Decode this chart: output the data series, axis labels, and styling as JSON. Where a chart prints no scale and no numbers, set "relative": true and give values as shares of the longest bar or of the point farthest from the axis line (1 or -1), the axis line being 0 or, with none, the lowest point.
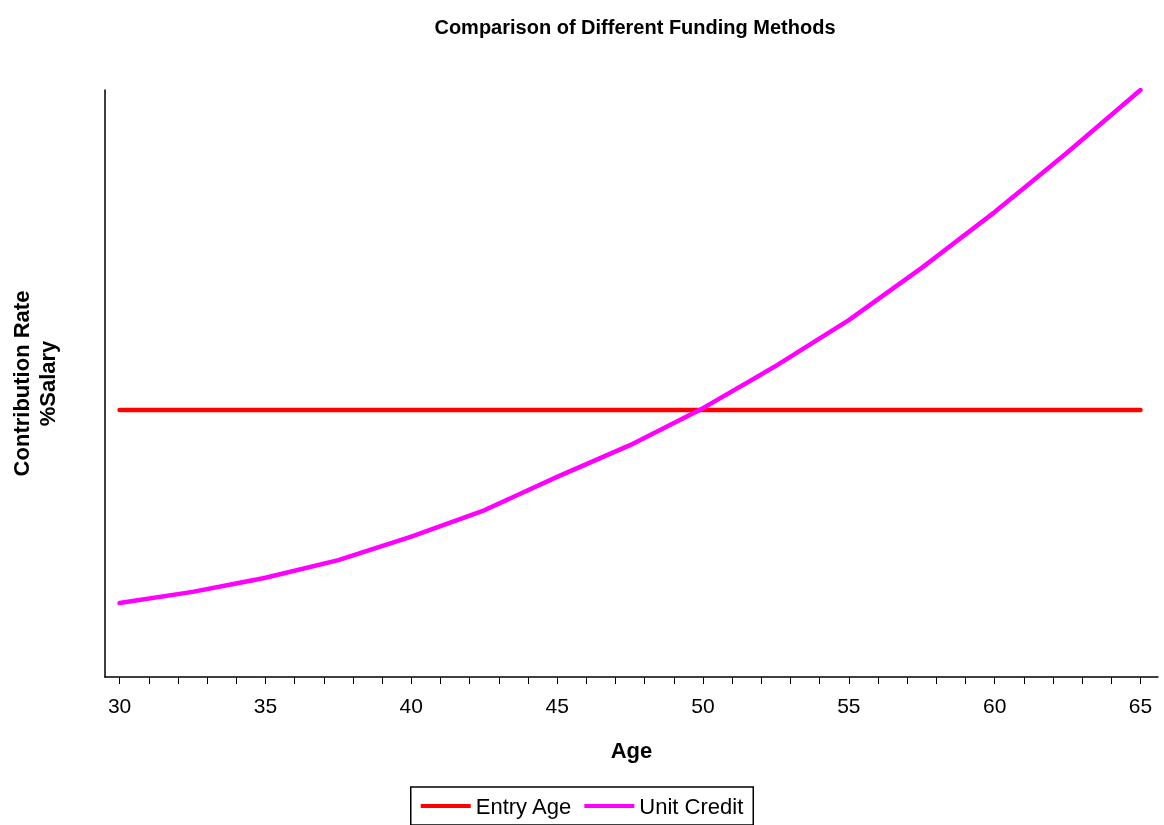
{
  "chart_data": {
    "type": "line",
    "title": "Comparison of Different Funding Methods",
    "xlabel": "Age",
    "ylabel": "Contribution Rate\n%Salary",
    "relative": true,
    "legend": "bottom",
    "grid": false,
    "marker": "none",
    "line_style": "solid",
    "xlim": [
      29.5,
      65.6
    ],
    "xticks": [
      30,
      {
        "value": 31,
        "label": null
      },
      {
        "value": 32,
        "label": null
      },
      {
        "value": 33,
        "label": null
      },
      {
        "value": 34,
        "label": null
      },
      35,
      {
        "value": 36,
        "label": null
      },
      {
        "value": 37,
        "label": null
      },
      {
        "value": 38,
        "label": null
      },
      {
        "value": 39,
        "label": null
      },
      40,
      {
        "value": 41,
        "label": null
      },
      {
        "value": 42,
        "label": null
      },
      {
        "value": 43,
        "label": null
      },
      {
        "value": 44,
        "label": null
      },
      45,
      {
        "value": 46,
        "label": null
      },
      {
        "value": 47,
        "label": null
      },
      {
        "value": 48,
        "label": null
      },
      {
        "value": 49,
        "label": null
      },
      50,
      {
        "value": 51,
        "label": null
      },
      {
        "value": 52,
        "label": null
      },
      {
        "value": 53,
        "label": null
      },
      {
        "value": 54,
        "label": null
      },
      55,
      {
        "value": 56,
        "label": null
      },
      {
        "value": 57,
        "label": null
      },
      {
        "value": 58,
        "label": null
      },
      {
        "value": 59,
        "label": null
      },
      60,
      {
        "value": 61,
        "label": null
      },
      {
        "value": 62,
        "label": null
      },
      {
        "value": 63,
        "label": null
      },
      {
        "value": 64,
        "label": null
      },
      65
    ],
    "series": [
      {
        "name": "Entry Age",
        "color": "#ff0000",
        "x": [
          30,
          65
        ],
        "values": [
          0.455,
          0.455
        ]
      },
      {
        "name": "Unit Credit",
        "color": "#ff00ff",
        "x": [
          30,
          32.5,
          35,
          37.5,
          40,
          42.5,
          45,
          47.5,
          50,
          52.5,
          55,
          57.5,
          60,
          62.5,
          65
        ],
        "values": [
          0.126,
          0.145,
          0.169,
          0.199,
          0.239,
          0.284,
          0.341,
          0.395,
          0.458,
          0.53,
          0.608,
          0.697,
          0.792,
          0.894,
          1
        ]
      }
    ]
  }
}
